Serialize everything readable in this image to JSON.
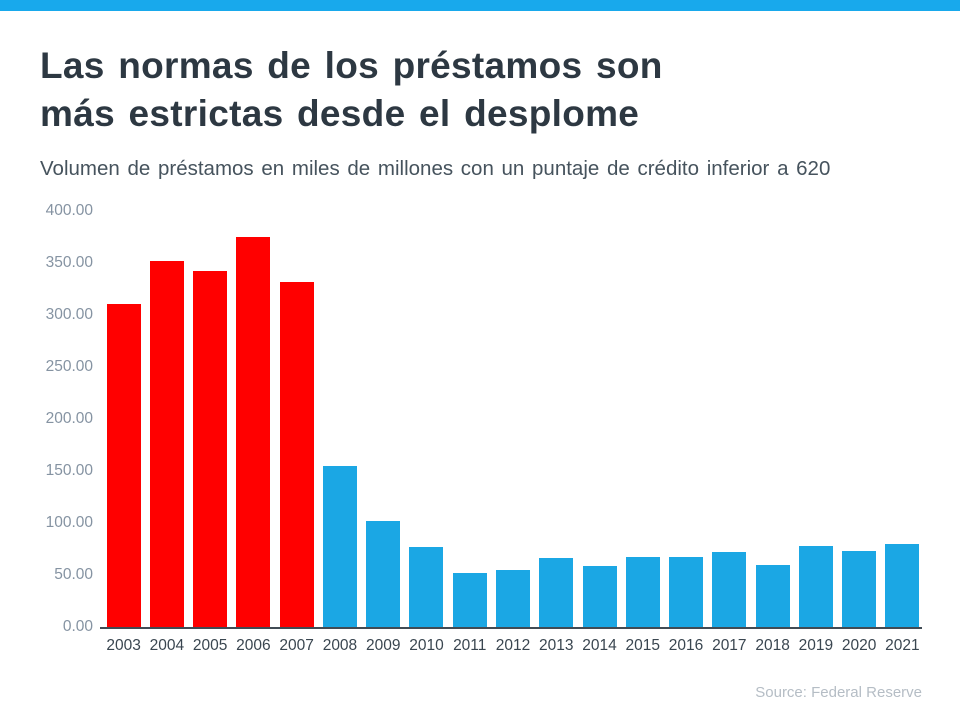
{
  "header": {
    "title_line1": "Las normas de los préstamos son",
    "title_line2": "más estrictas desde el desplome",
    "subtitle": "Volumen de préstamos en miles de millones con un puntaje de crédito inferior a 620"
  },
  "footer": {
    "source": "Source: Federal Reserve"
  },
  "theme": {
    "accent_bar_color": "#18A9EC",
    "red_bar_color": "#FF0000",
    "blue_bar_color": "#1BA7E4",
    "title_color": "#2D3842",
    "subtitle_color": "#46535D",
    "ytick_label_color": "#8593A2",
    "xtick_label_color": "#3A4650",
    "axis_line_color": "#414B54",
    "source_color": "#B5BDC5",
    "background_color": "#FFFFFF"
  },
  "chart_data": {
    "type": "bar",
    "title": "Las normas de los préstamos son más estrictas desde el desplome",
    "subtitle": "Volumen de préstamos en miles de millones con un puntaje de crédito inferior a 620",
    "categories": [
      "2003",
      "2004",
      "2005",
      "2006",
      "2007",
      "2008",
      "2009",
      "2010",
      "2011",
      "2012",
      "2013",
      "2014",
      "2015",
      "2016",
      "2017",
      "2018",
      "2019",
      "2020",
      "2021"
    ],
    "values": [
      311,
      352,
      342,
      375,
      332,
      155,
      102,
      77,
      52,
      55,
      66,
      59,
      67,
      67,
      72,
      60,
      78,
      73,
      80
    ],
    "bar_colors": [
      "#FF0000",
      "#FF0000",
      "#FF0000",
      "#FF0000",
      "#FF0000",
      "#1BA7E4",
      "#1BA7E4",
      "#1BA7E4",
      "#1BA7E4",
      "#1BA7E4",
      "#1BA7E4",
      "#1BA7E4",
      "#1BA7E4",
      "#1BA7E4",
      "#1BA7E4",
      "#1BA7E4",
      "#1BA7E4",
      "#1BA7E4",
      "#1BA7E4"
    ],
    "xlabel": "",
    "ylabel": "",
    "ylim": [
      0,
      400
    ],
    "ytick_labels": [
      "0.00",
      "50.00",
      "100.00",
      "150.00",
      "200.00",
      "250.00",
      "300.00",
      "350.00",
      "400.00"
    ],
    "grid": false,
    "legend": false,
    "source": "Source: Federal Reserve"
  }
}
